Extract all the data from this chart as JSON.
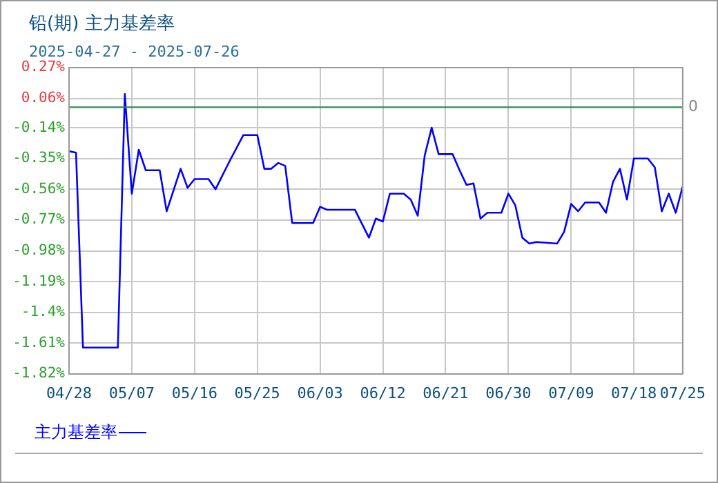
{
  "chart_data": {
    "type": "line",
    "title": "铅(期) 主力基差率",
    "subtitle": "2025-04-27 - 2025-07-26",
    "series": [
      {
        "name": "主力基差率",
        "color": "#0000ff",
        "x": [
          "2025-04-28",
          "2025-04-29",
          "2025-04-30",
          "2025-05-05",
          "2025-05-06",
          "2025-05-07",
          "2025-05-08",
          "2025-05-09",
          "2025-05-11",
          "2025-05-12",
          "2025-05-14",
          "2025-05-15",
          "2025-05-16",
          "2025-05-18",
          "2025-05-19",
          "2025-05-21",
          "2025-05-23",
          "2025-05-25",
          "2025-05-26",
          "2025-05-27",
          "2025-05-28",
          "2025-05-29",
          "2025-05-30",
          "2025-06-02",
          "2025-06-03",
          "2025-06-04",
          "2025-06-08",
          "2025-06-10",
          "2025-06-11",
          "2025-06-12",
          "2025-06-13",
          "2025-06-15",
          "2025-06-16",
          "2025-06-17",
          "2025-06-18",
          "2025-06-19",
          "2025-06-20",
          "2025-06-22",
          "2025-06-23",
          "2025-06-24",
          "2025-06-25",
          "2025-06-26",
          "2025-06-27",
          "2025-06-28",
          "2025-06-29",
          "2025-06-30",
          "2025-07-01",
          "2025-07-02",
          "2025-07-03",
          "2025-07-04",
          "2025-07-07",
          "2025-07-08",
          "2025-07-09",
          "2025-07-10",
          "2025-07-11",
          "2025-07-13",
          "2025-07-14",
          "2025-07-15",
          "2025-07-16",
          "2025-07-17",
          "2025-07-18",
          "2025-07-20",
          "2025-07-21",
          "2025-07-22",
          "2025-07-23",
          "2025-07-24",
          "2025-07-25"
        ],
        "values": [
          -0.3,
          -0.31,
          -1.64,
          -1.64,
          0.09,
          -0.59,
          -0.29,
          -0.43,
          -0.43,
          -0.71,
          -0.42,
          -0.55,
          -0.49,
          -0.49,
          -0.56,
          -0.37,
          -0.19,
          -0.19,
          -0.42,
          -0.42,
          -0.38,
          -0.4,
          -0.79,
          -0.79,
          -0.68,
          -0.7,
          -0.7,
          -0.89,
          -0.76,
          -0.78,
          -0.59,
          -0.59,
          -0.63,
          -0.74,
          -0.33,
          -0.14,
          -0.32,
          -0.32,
          -0.43,
          -0.53,
          -0.52,
          -0.76,
          -0.72,
          -0.72,
          -0.72,
          -0.59,
          -0.67,
          -0.89,
          -0.93,
          -0.92,
          -0.93,
          -0.85,
          -0.66,
          -0.71,
          -0.65,
          -0.65,
          -0.72,
          -0.51,
          -0.42,
          -0.63,
          -0.35,
          -0.35,
          -0.41,
          -0.71,
          -0.59,
          -0.72,
          -0.54
        ]
      }
    ],
    "xlim": [
      "2025-04-28",
      "2025-07-25"
    ],
    "xticks": [
      {
        "value": "2025-04-28",
        "label": "04/28"
      },
      {
        "value": "2025-05-07",
        "label": "05/07"
      },
      {
        "value": "2025-05-16",
        "label": "05/16"
      },
      {
        "value": "2025-05-25",
        "label": "05/25"
      },
      {
        "value": "2025-06-03",
        "label": "06/03"
      },
      {
        "value": "2025-06-12",
        "label": "06/12"
      },
      {
        "value": "2025-06-21",
        "label": "06/21"
      },
      {
        "value": "2025-06-30",
        "label": "06/30"
      },
      {
        "value": "2025-07-09",
        "label": "07/09"
      },
      {
        "value": "2025-07-18",
        "label": "07/18"
      },
      {
        "value": "2025-07-25",
        "label": "07/25"
      }
    ],
    "ylim": [
      -1.82,
      0.27
    ],
    "yticks": [
      {
        "value": -1.82,
        "label": "-1.82%"
      },
      {
        "value": -1.61,
        "label": "-1.61%"
      },
      {
        "value": -1.4,
        "label": "-1.4%"
      },
      {
        "value": -1.19,
        "label": "-1.19%"
      },
      {
        "value": -0.98,
        "label": "-0.98%"
      },
      {
        "value": -0.77,
        "label": "-0.77%"
      },
      {
        "value": -0.56,
        "label": "-0.56%"
      },
      {
        "value": -0.35,
        "label": "-0.35%"
      },
      {
        "value": -0.14,
        "label": "-0.14%"
      },
      {
        "value": 0.06,
        "label": "0.06%"
      },
      {
        "value": 0.27,
        "label": "0.27%"
      }
    ],
    "ref_lines": [
      {
        "axis": "y",
        "value": 0,
        "label": "0",
        "color": "#2e8b57"
      }
    ],
    "grid": true,
    "legend": "bottom",
    "marker": "none",
    "line_style": "solid"
  }
}
